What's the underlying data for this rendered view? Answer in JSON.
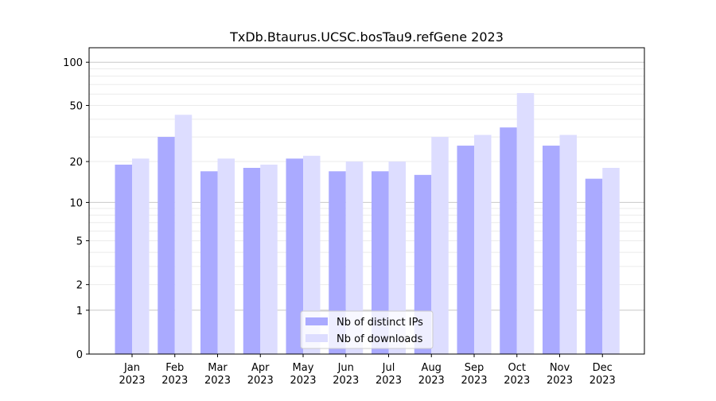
{
  "chart_data": {
    "type": "bar",
    "title": "TxDb.Btaurus.UCSC.bosTau9.refGene 2023",
    "xlabel": "",
    "ylabel": "",
    "yscale": "symlog (log10(1+y))",
    "ylim": [
      0,
      120
    ],
    "yticks": [
      0,
      1,
      2,
      5,
      10,
      20,
      50,
      100
    ],
    "grid": true,
    "legend_position": "bottom-center",
    "categories": [
      "Jan\n2023",
      "Feb\n2023",
      "Mar\n2023",
      "Apr\n2023",
      "May\n2023",
      "Jun\n2023",
      "Jul\n2023",
      "Aug\n2023",
      "Sep\n2023",
      "Oct\n2023",
      "Nov\n2023",
      "Dec\n2023"
    ],
    "series": [
      {
        "name": "Nb of distinct IPs",
        "color": "#aaaaff",
        "values": [
          19,
          30,
          17,
          18,
          21,
          17,
          17,
          16,
          26,
          35,
          26,
          15
        ]
      },
      {
        "name": "Nb of downloads",
        "color": "#ddddff",
        "values": [
          21,
          43,
          21,
          19,
          22,
          20,
          20,
          30,
          31,
          61,
          31,
          18
        ]
      }
    ]
  }
}
